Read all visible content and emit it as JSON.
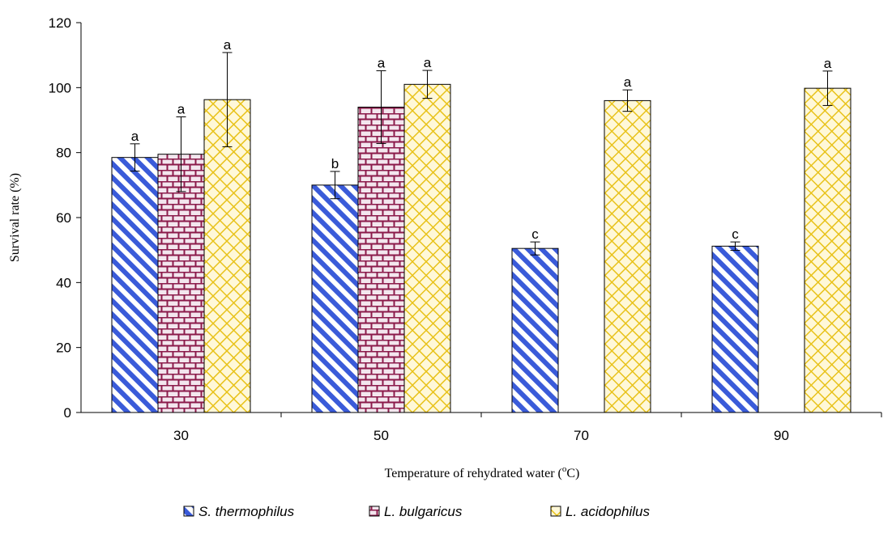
{
  "chart_data": {
    "type": "bar",
    "xlabel_text": "Temperature of rehydrated water (",
    "xlabel_sup": "o",
    "xlabel_tail": "C)",
    "ylabel": "Survival rate (%)",
    "ylim": [
      0,
      120
    ],
    "yticks": [
      0,
      20,
      40,
      60,
      80,
      100,
      120
    ],
    "categories": [
      "30",
      "50",
      "70",
      "90"
    ],
    "legend_position": "bottom",
    "series": [
      {
        "name_prefix": "S.",
        "name_rest": "thermophilus",
        "color": "#3a5bd9",
        "pattern": "diagonal-stripes",
        "values": [
          78.5,
          70,
          50.5,
          51.2
        ],
        "errors": [
          4.2,
          4.2,
          2,
          1.3
        ],
        "letters": [
          "a",
          "b",
          "c",
          "c"
        ]
      },
      {
        "name_prefix": "L.",
        "name_rest": "bulgaricus",
        "color": "#8b1a4a",
        "pattern": "brick",
        "values": [
          79.5,
          94,
          0,
          0
        ],
        "errors": [
          11.5,
          11.2,
          0,
          0
        ],
        "letters": [
          "a",
          "a",
          "",
          ""
        ]
      },
      {
        "name_prefix": "L.",
        "name_rest": "acidophilus",
        "color": "#e8c21a",
        "pattern": "crosshatch",
        "values": [
          96.3,
          101,
          96,
          99.8
        ],
        "errors": [
          14.5,
          4.3,
          3.3,
          5.3
        ],
        "letters": [
          "a",
          "a",
          "a",
          "a"
        ]
      }
    ]
  }
}
